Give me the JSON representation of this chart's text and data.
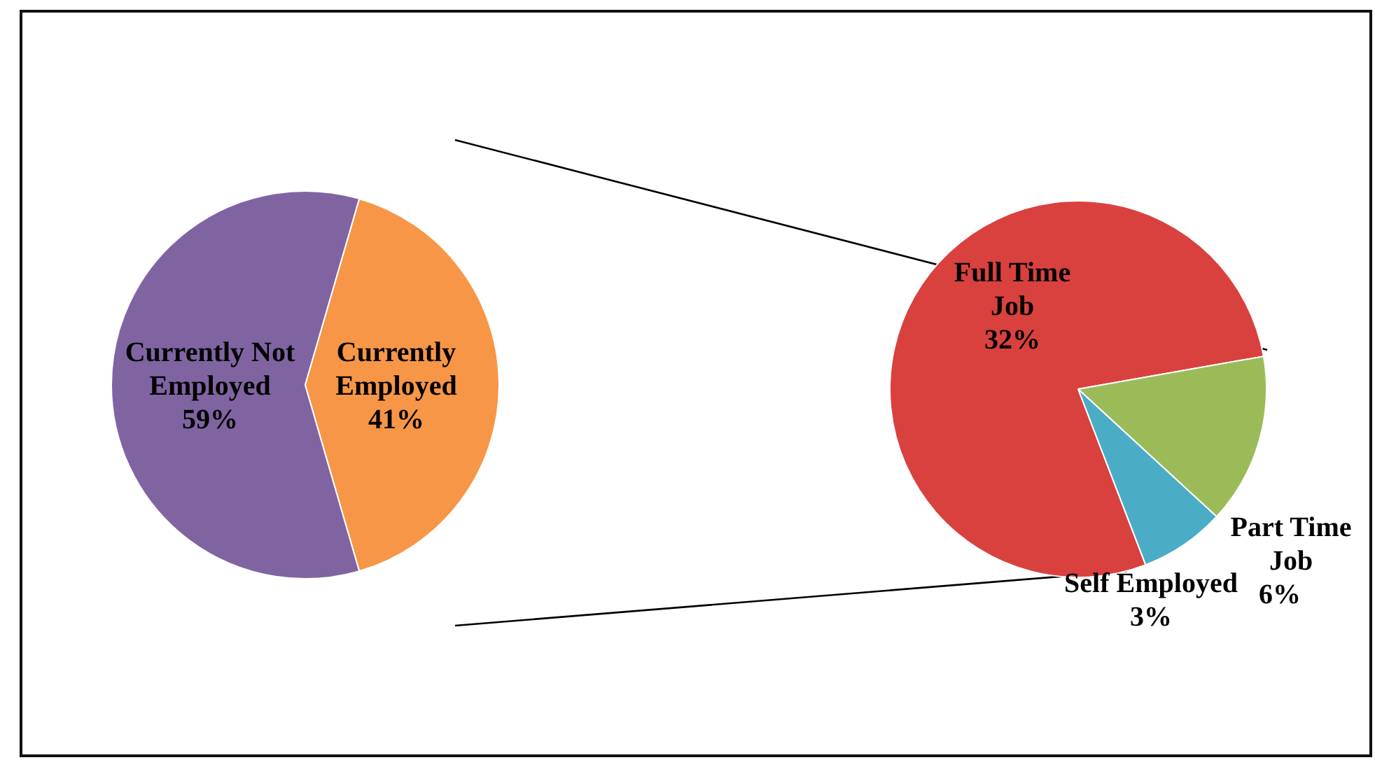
{
  "chart_data": [
    {
      "type": "pie",
      "categories": [
        "Currently Not Employed",
        "Currently Employed"
      ],
      "values": [
        59,
        41
      ],
      "colors": [
        "#8064a2",
        "#f79646"
      ],
      "value_labels": [
        "59%",
        "41%"
      ],
      "legend": false
    },
    {
      "type": "pie",
      "categories": [
        "Full Time Job",
        "Part Time Job",
        "Self Employed"
      ],
      "values": [
        32,
        6,
        3
      ],
      "colors": [
        "#d9413f",
        "#9bbb59",
        "#4bacc6"
      ],
      "value_labels": [
        "32%",
        "6%",
        "3%"
      ],
      "legend": false
    }
  ]
}
